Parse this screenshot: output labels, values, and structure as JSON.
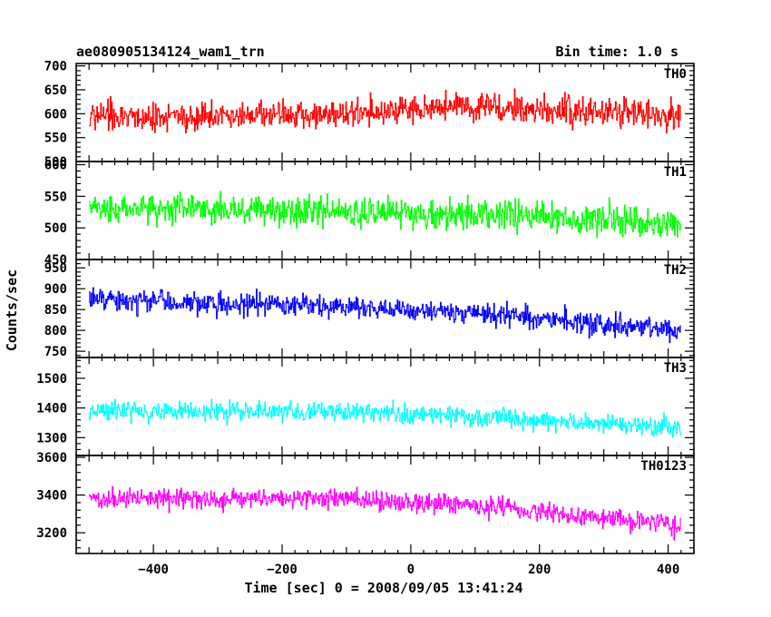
{
  "chart_data": {
    "type": "line",
    "title_left": "ae080905134124_wam1_trn",
    "title_right": "Bin time: 1.0 s",
    "xlabel": "Time [sec] 0 = 2008/09/05 13:41:24",
    "ylabel": "Counts/sec",
    "xlim": [
      -520,
      440
    ],
    "data_x_range": [
      -500,
      420
    ],
    "x_step": 1,
    "x_ticks": [
      -400,
      -200,
      0,
      200,
      400
    ],
    "panels": [
      {
        "name": "TH0",
        "color": "#ff0000",
        "ylim": [
          500,
          705
        ],
        "yticks": [
          500,
          550,
          600,
          650,
          700
        ],
        "trend": [
          [
            -500,
            590
          ],
          [
            -100,
            600
          ],
          [
            100,
            615
          ],
          [
            300,
            605
          ],
          [
            420,
            595
          ]
        ],
        "noise": 38
      },
      {
        "name": "TH1",
        "color": "#00ff00",
        "ylim": [
          450,
          605
        ],
        "yticks": [
          450,
          500,
          550,
          600
        ],
        "trend": [
          [
            -500,
            530
          ],
          [
            -200,
            528
          ],
          [
            100,
            522
          ],
          [
            300,
            515
          ],
          [
            420,
            505
          ]
        ],
        "noise": 30
      },
      {
        "name": "TH2",
        "color": "#0000ff",
        "ylim": [
          735,
          970
        ],
        "yticks": [
          750,
          800,
          850,
          900,
          950
        ],
        "trend": [
          [
            -500,
            875
          ],
          [
            -300,
            865
          ],
          [
            0,
            850
          ],
          [
            200,
            830
          ],
          [
            420,
            800
          ]
        ],
        "noise": 33
      },
      {
        "name": "TH3",
        "color": "#00ffff",
        "ylim": [
          1240,
          1570
        ],
        "yticks": [
          1300,
          1400,
          1500
        ],
        "trend": [
          [
            -500,
            1390
          ],
          [
            -100,
            1385
          ],
          [
            100,
            1370
          ],
          [
            300,
            1345
          ],
          [
            420,
            1330
          ]
        ],
        "noise": 40
      },
      {
        "name": "TH0123",
        "color": "#ff00ff",
        "ylim": [
          3090,
          3610
        ],
        "yticks": [
          3200,
          3400,
          3600
        ],
        "trend": [
          [
            -500,
            3385
          ],
          [
            -100,
            3380
          ],
          [
            100,
            3340
          ],
          [
            300,
            3280
          ],
          [
            420,
            3240
          ]
        ],
        "noise": 65
      }
    ]
  }
}
